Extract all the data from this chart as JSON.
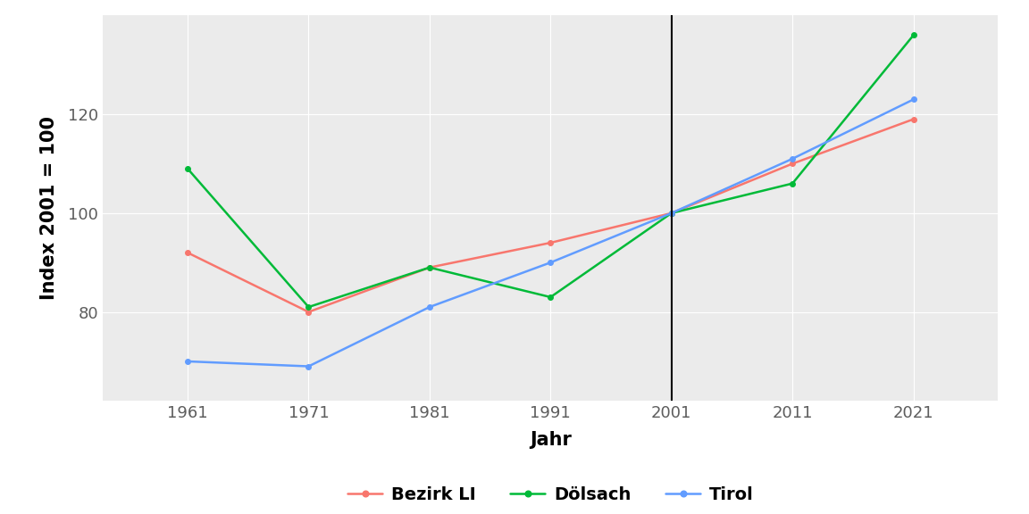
{
  "years": [
    1961,
    1971,
    1981,
    1991,
    2001,
    2011,
    2021
  ],
  "bezirk_li": [
    92,
    80,
    89,
    94,
    100,
    110,
    119
  ],
  "doelsach": [
    109,
    81,
    89,
    83,
    100,
    106,
    136
  ],
  "tirol": [
    70,
    69,
    81,
    90,
    100,
    111,
    123
  ],
  "vline_x": 2001,
  "ylabel": "Index 2001 = 100",
  "xlabel": "Jahr",
  "ylim": [
    62,
    140
  ],
  "xlim": [
    1954,
    2028
  ],
  "yticks": [
    80,
    100,
    120
  ],
  "xticks": [
    1961,
    1971,
    1981,
    1991,
    2001,
    2011,
    2021
  ],
  "color_bezirk": "#F8766D",
  "color_doelsach": "#00BA38",
  "color_tirol": "#619CFF",
  "legend_labels": [
    "Bezirk LI",
    "Dölsach",
    "Tirol"
  ],
  "background_color": "#ffffff",
  "panel_background": "#EBEBEB",
  "grid_color": "#ffffff",
  "tick_color": "#7F7F7F",
  "axis_label_color": "#000000",
  "line_width": 1.8,
  "marker": "o",
  "marker_size": 4
}
